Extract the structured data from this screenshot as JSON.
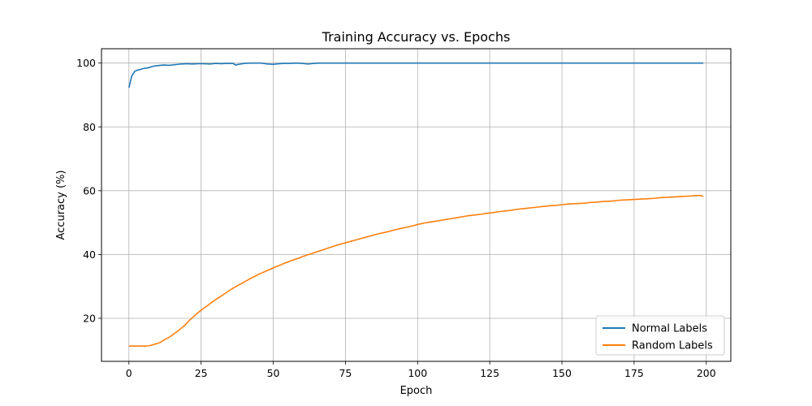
{
  "chart_data": {
    "type": "line",
    "title": "Training Accuracy vs. Epochs",
    "xlabel": "Epoch",
    "ylabel": "Accuracy (%)",
    "xlim": [
      -9.5,
      208.5
    ],
    "ylim": [
      6.5,
      104.5
    ],
    "xticks": [
      0,
      25,
      50,
      75,
      100,
      125,
      150,
      175,
      200
    ],
    "yticks": [
      20,
      40,
      60,
      80,
      100
    ],
    "grid": true,
    "legend_position": "bottom-right",
    "series": [
      {
        "name": "Normal Labels",
        "color": "#1f77b4",
        "x": [
          0,
          1,
          2,
          3,
          4,
          5,
          6,
          7,
          8,
          9,
          10,
          12,
          14,
          16,
          18,
          20,
          22,
          24,
          26,
          28,
          30,
          32,
          34,
          36,
          37,
          38,
          40,
          42,
          44,
          46,
          48,
          50,
          52,
          54,
          56,
          58,
          60,
          62,
          64,
          66,
          70,
          80,
          100,
          125,
          150,
          175,
          199
        ],
        "y": [
          92.3,
          96.0,
          97.4,
          97.8,
          98.0,
          98.3,
          98.4,
          98.6,
          98.9,
          99.1,
          99.2,
          99.4,
          99.3,
          99.5,
          99.7,
          99.8,
          99.7,
          99.8,
          99.8,
          99.7,
          99.9,
          99.8,
          99.9,
          99.9,
          99.4,
          99.6,
          99.9,
          100.0,
          100.0,
          100.0,
          99.7,
          99.6,
          99.8,
          99.9,
          99.9,
          100.0,
          99.9,
          99.7,
          99.9,
          100.0,
          100.0,
          100.0,
          100.0,
          100.0,
          100.0,
          100.0,
          100.0
        ]
      },
      {
        "name": "Random Labels",
        "color": "#ff7f0e",
        "x": [
          0,
          2,
          4,
          6,
          7,
          8,
          9,
          10,
          11,
          12,
          13,
          14,
          15,
          16,
          17,
          18,
          19,
          20,
          21,
          22,
          23,
          24,
          25,
          26,
          27,
          28,
          29,
          30,
          31,
          32,
          33,
          34,
          35,
          36,
          37,
          38,
          39,
          40,
          41,
          42,
          43,
          44,
          45,
          46,
          47,
          48,
          49,
          50,
          51,
          52,
          53,
          54,
          55,
          56,
          57,
          58,
          59,
          60,
          61,
          62,
          63,
          64,
          65,
          66,
          67,
          68,
          69,
          70,
          72,
          74,
          76,
          78,
          80,
          82,
          84,
          86,
          88,
          90,
          92,
          94,
          96,
          98,
          100,
          102,
          104,
          106,
          108,
          110,
          112,
          114,
          116,
          118,
          120,
          122,
          124,
          126,
          128,
          130,
          132,
          134,
          136,
          138,
          140,
          142,
          144,
          146,
          148,
          150,
          152,
          154,
          156,
          158,
          160,
          162,
          164,
          166,
          168,
          170,
          172,
          174,
          176,
          178,
          180,
          182,
          184,
          186,
          188,
          190,
          192,
          194,
          196,
          198,
          199
        ],
        "y": [
          11.3,
          11.3,
          11.3,
          11.3,
          11.4,
          11.6,
          11.9,
          12.1,
          12.5,
          13.1,
          13.6,
          14.1,
          14.7,
          15.4,
          16.0,
          16.8,
          17.5,
          18.4,
          19.4,
          20.2,
          21.0,
          21.8,
          22.5,
          23.2,
          23.8,
          24.5,
          25.2,
          25.8,
          26.4,
          27.0,
          27.6,
          28.2,
          28.8,
          29.4,
          29.9,
          30.4,
          30.9,
          31.4,
          31.9,
          32.4,
          32.9,
          33.3,
          33.8,
          34.2,
          34.6,
          35.0,
          35.4,
          35.8,
          36.2,
          36.5,
          36.9,
          37.3,
          37.6,
          38.0,
          38.3,
          38.6,
          38.9,
          39.3,
          39.6,
          39.9,
          40.2,
          40.5,
          40.8,
          41.1,
          41.4,
          41.7,
          42.0,
          42.3,
          42.9,
          43.4,
          43.9,
          44.4,
          44.9,
          45.4,
          45.9,
          46.4,
          46.8,
          47.2,
          47.7,
          48.1,
          48.5,
          48.9,
          49.4,
          49.8,
          50.1,
          50.4,
          50.7,
          51.0,
          51.3,
          51.6,
          51.9,
          52.2,
          52.4,
          52.6,
          52.9,
          53.1,
          53.4,
          53.6,
          53.8,
          54.1,
          54.3,
          54.5,
          54.7,
          54.9,
          55.1,
          55.3,
          55.4,
          55.6,
          55.8,
          55.9,
          56.0,
          56.1,
          56.3,
          56.4,
          56.6,
          56.7,
          56.8,
          57.0,
          57.1,
          57.2,
          57.3,
          57.4,
          57.5,
          57.6,
          57.8,
          57.9,
          58.0,
          58.1,
          58.2,
          58.3,
          58.4,
          58.5,
          58.2
        ]
      }
    ]
  }
}
